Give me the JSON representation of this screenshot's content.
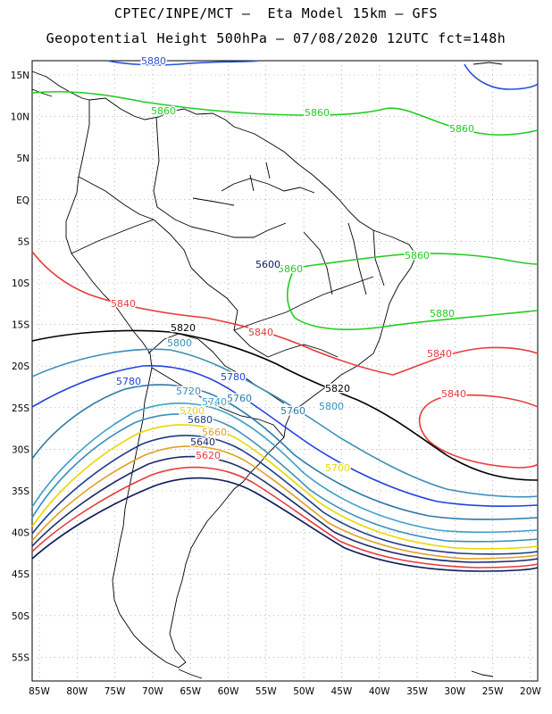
{
  "title_line1": "CPTEC/INPE/MCT –  Eta Model 15km – GFS",
  "title_line2": "Geopotential Height 500hPa – 07/08/2020 12UTC fct=148h",
  "map": {
    "lat_labels": [
      "15N",
      "10N",
      "5N",
      "EQ",
      "5S",
      "10S",
      "15S",
      "20S",
      "25S",
      "30S",
      "35S",
      "40S",
      "45S",
      "50S",
      "55S"
    ],
    "lon_labels": [
      "85W",
      "80W",
      "75W",
      "70W",
      "65W",
      "60W",
      "55W",
      "50W",
      "45W",
      "40W",
      "35W",
      "30W",
      "25W",
      "20W"
    ],
    "contour_labels": [
      {
        "text": "5880",
        "color": "#2a52d8"
      },
      {
        "text": "5860",
        "color": "#22cc22"
      },
      {
        "text": "5860",
        "color": "#22cc22"
      },
      {
        "text": "5860",
        "color": "#22cc22"
      },
      {
        "text": "5860",
        "color": "#22cc22"
      },
      {
        "text": "5860",
        "color": "#22cc22"
      },
      {
        "text": "5880",
        "color": "#22cc22"
      },
      {
        "text": "5840",
        "color": "#e83a3a"
      },
      {
        "text": "5840",
        "color": "#e83a3a"
      },
      {
        "text": "5840",
        "color": "#e83a3a"
      },
      {
        "text": "5840",
        "color": "#e83a3a"
      },
      {
        "text": "5820",
        "color": "#000000"
      },
      {
        "text": "5820",
        "color": "#000000"
      },
      {
        "text": "5800",
        "color": "#3a8fb8"
      },
      {
        "text": "5800",
        "color": "#3a8fb8"
      },
      {
        "text": "5780",
        "color": "#2040e0"
      },
      {
        "text": "5780",
        "color": "#2040e0"
      },
      {
        "text": "5760",
        "color": "#2a7aa8"
      },
      {
        "text": "5760",
        "color": "#2a7aa8"
      },
      {
        "text": "5740",
        "color": "#3aa0c8"
      },
      {
        "text": "5720",
        "color": "#3a8fb8"
      },
      {
        "text": "5700",
        "color": "#e8d800"
      },
      {
        "text": "5700",
        "color": "#e8d800"
      },
      {
        "text": "5680",
        "color": "#1a3a8a"
      },
      {
        "text": "5660",
        "color": "#e0a020"
      },
      {
        "text": "5640",
        "color": "#1a2a6a"
      },
      {
        "text": "5620",
        "color": "#e83a3a"
      },
      {
        "text": "5600",
        "color": "#0a1a5a"
      }
    ]
  }
}
